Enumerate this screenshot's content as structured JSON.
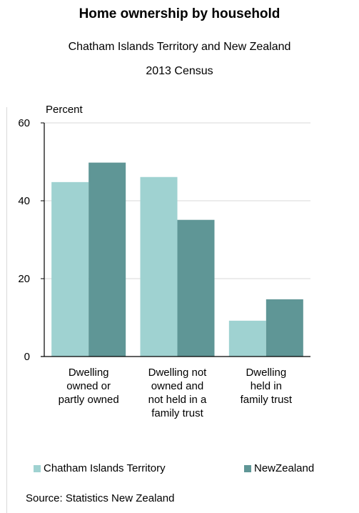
{
  "title": "Home ownership by household",
  "subtitle_line1": "Chatham Islands Territory and New Zealand",
  "subtitle_line2": "2013 Census",
  "source": "Source: Statistics New Zealand",
  "colors": {
    "series1": "#9fd2d1",
    "series2": "#5f9696",
    "axis": "#000000",
    "grid": "#d9d9d9"
  },
  "chart_data": {
    "type": "bar",
    "title": "Home ownership by household",
    "subtitle": "Chatham Islands Territory and New Zealand 2013 Census",
    "ylabel": "Percent",
    "xlabel": "",
    "ylim": [
      0,
      60
    ],
    "yticks": [
      "0",
      "20",
      "40",
      "60"
    ],
    "grid": true,
    "legend_position": "bottom",
    "categories": [
      "Dwelling\nowned or\npartly owned",
      "Dwelling not\nowned and\nnot held in a\nfamily trust",
      "Dwelling\nheld in\nfamily trust"
    ],
    "series": [
      {
        "name": "Chatham Islands Territory",
        "values": [
          44.8,
          46.1,
          9.2
        ]
      },
      {
        "name": "New Zealand",
        "values": [
          49.8,
          35.1,
          14.7
        ]
      }
    ]
  },
  "legend": {
    "item1": "Chatham Islands Territory",
    "item2": "NewZealand"
  }
}
